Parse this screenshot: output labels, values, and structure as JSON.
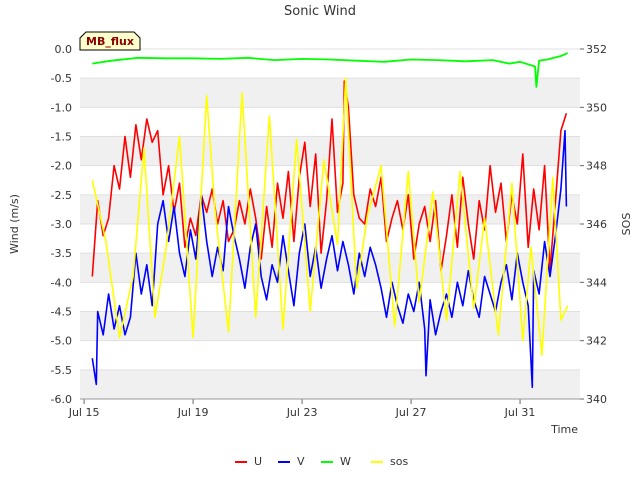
{
  "chart_data": {
    "type": "line",
    "title": "Sonic Wind",
    "badge": "MB_flux",
    "xlabel": "Time",
    "ylabel": "Wind (m/s)",
    "y2label": "SOS",
    "x_range_days": [
      14.85,
      33.2
    ],
    "ylim": [
      -6.0,
      0.0
    ],
    "y2lim": [
      340,
      352
    ],
    "x_ticks": [
      {
        "day": 15,
        "label": "Jul 15"
      },
      {
        "day": 19,
        "label": "Jul 19"
      },
      {
        "day": 23,
        "label": "Jul 23"
      },
      {
        "day": 27,
        "label": "Jul 27"
      },
      {
        "day": 31,
        "label": "Jul 31"
      }
    ],
    "y_ticks": [
      "0.0",
      "-0.5",
      "-1.0",
      "-1.5",
      "-2.0",
      "-2.5",
      "-3.0",
      "-3.5",
      "-4.0",
      "-4.5",
      "-5.0",
      "-5.5",
      "-6.0"
    ],
    "y2_ticks": [
      "352",
      "350",
      "348",
      "346",
      "344",
      "342",
      "340"
    ],
    "series": [
      {
        "name": "U",
        "color": "#ff0000",
        "axis": "left",
        "x": [
          15.3,
          15.5,
          15.7,
          15.9,
          16.1,
          16.3,
          16.5,
          16.7,
          16.9,
          17.1,
          17.3,
          17.5,
          17.7,
          17.9,
          18.1,
          18.3,
          18.5,
          18.7,
          18.9,
          19.1,
          19.3,
          19.5,
          19.7,
          19.9,
          20.1,
          20.3,
          20.5,
          20.7,
          20.9,
          21.1,
          21.3,
          21.5,
          21.7,
          21.9,
          22.1,
          22.3,
          22.5,
          22.7,
          22.9,
          23.1,
          23.3,
          23.5,
          23.7,
          23.9,
          24.1,
          24.3,
          24.5,
          24.7,
          24.9,
          25.1,
          25.3,
          25.5,
          25.7,
          25.9,
          26.1,
          26.3,
          26.5,
          26.7,
          26.9,
          27.1,
          27.3,
          27.5,
          27.7,
          27.9,
          28.1,
          28.3,
          28.5,
          28.7,
          28.9,
          29.1,
          29.3,
          29.5,
          29.7,
          29.9,
          30.1,
          30.3,
          30.5,
          30.7,
          30.9,
          31.1,
          31.3,
          31.5,
          31.7,
          31.9,
          32.1,
          32.3,
          32.5,
          32.7
        ],
        "y": [
          -3.9,
          -2.6,
          -3.2,
          -2.9,
          -2.0,
          -2.4,
          -1.5,
          -2.2,
          -1.3,
          -1.9,
          -1.2,
          -1.6,
          -1.4,
          -2.5,
          -2.0,
          -2.8,
          -2.3,
          -3.4,
          -2.9,
          -3.2,
          -2.5,
          -2.8,
          -2.4,
          -3.0,
          -2.6,
          -3.3,
          -3.1,
          -2.6,
          -3.0,
          -2.4,
          -2.9,
          -3.6,
          -2.7,
          -3.4,
          -2.3,
          -2.9,
          -2.1,
          -3.3,
          -2.2,
          -1.6,
          -2.7,
          -1.8,
          -3.5,
          -2.6,
          -1.2,
          -2.8,
          -2.3,
          -1.0,
          -2.5,
          -2.9,
          -3.0,
          -2.4,
          -2.7,
          -2.2,
          -3.3,
          -2.9,
          -2.6,
          -3.1,
          -2.5,
          -3.6,
          -3.0,
          -2.7,
          -3.3,
          -2.6,
          -3.8,
          -3.2,
          -2.5,
          -3.4,
          -2.2,
          -3.0,
          -3.6,
          -2.6,
          -3.1,
          -2.0,
          -2.8,
          -2.3,
          -3.3,
          -2.5,
          -3.0,
          -1.8,
          -3.4,
          -2.4,
          -3.1,
          -2.0,
          -3.8,
          -2.6,
          -1.4,
          -1.1
        ],
        "extrema": [
          {
            "day": 24.55,
            "value": -0.55
          }
        ]
      },
      {
        "name": "V",
        "color": "#0000ff",
        "axis": "left",
        "x": [
          15.3,
          15.5,
          15.7,
          15.9,
          16.1,
          16.3,
          16.5,
          16.7,
          16.9,
          17.1,
          17.3,
          17.5,
          17.7,
          17.9,
          18.1,
          18.3,
          18.5,
          18.7,
          18.9,
          19.1,
          19.3,
          19.5,
          19.7,
          19.9,
          20.1,
          20.3,
          20.5,
          20.7,
          20.9,
          21.1,
          21.3,
          21.5,
          21.7,
          21.9,
          22.1,
          22.3,
          22.5,
          22.7,
          22.9,
          23.1,
          23.3,
          23.5,
          23.7,
          23.9,
          24.1,
          24.3,
          24.5,
          24.7,
          24.9,
          25.1,
          25.3,
          25.5,
          25.7,
          25.9,
          26.1,
          26.3,
          26.5,
          26.7,
          26.9,
          27.1,
          27.3,
          27.5,
          27.7,
          27.9,
          28.1,
          28.3,
          28.5,
          28.7,
          28.9,
          29.1,
          29.3,
          29.5,
          29.7,
          29.9,
          30.1,
          30.3,
          30.5,
          30.7,
          30.9,
          31.1,
          31.3,
          31.5,
          31.7,
          31.9,
          32.1,
          32.3,
          32.5,
          32.7
        ],
        "y": [
          -5.3,
          -4.5,
          -4.9,
          -4.2,
          -4.8,
          -4.4,
          -4.9,
          -4.6,
          -3.5,
          -4.2,
          -3.7,
          -4.4,
          -3.0,
          -2.6,
          -3.3,
          -2.7,
          -3.5,
          -3.9,
          -3.1,
          -3.6,
          -2.5,
          -3.3,
          -3.9,
          -3.4,
          -3.8,
          -2.7,
          -3.2,
          -3.6,
          -4.1,
          -3.4,
          -3.0,
          -3.9,
          -4.3,
          -3.7,
          -4.0,
          -3.2,
          -3.8,
          -4.4,
          -3.5,
          -3.0,
          -3.9,
          -3.4,
          -4.1,
          -3.6,
          -3.2,
          -3.8,
          -3.3,
          -3.7,
          -4.2,
          -3.5,
          -3.9,
          -3.4,
          -3.7,
          -4.1,
          -4.6,
          -4.0,
          -4.4,
          -4.7,
          -4.2,
          -4.5,
          -4.0,
          -4.8,
          -4.3,
          -4.9,
          -4.5,
          -4.2,
          -4.6,
          -4.0,
          -4.4,
          -3.8,
          -4.3,
          -4.6,
          -3.9,
          -4.2,
          -4.5,
          -4.0,
          -3.7,
          -4.3,
          -3.5,
          -4.0,
          -4.4,
          -3.8,
          -4.2,
          -3.3,
          -3.9,
          -3.2,
          -2.4,
          -2.7
        ],
        "extrema": [
          {
            "day": 15.45,
            "value": -5.75
          },
          {
            "day": 27.55,
            "value": -5.6
          },
          {
            "day": 31.45,
            "value": -5.8
          },
          {
            "day": 32.65,
            "value": -1.4
          }
        ]
      },
      {
        "name": "W",
        "color": "#00ff00",
        "axis": "left",
        "x": [
          15.3,
          16.0,
          17.0,
          18.0,
          19.0,
          20.0,
          21.0,
          22.0,
          23.0,
          24.0,
          25.0,
          26.0,
          27.0,
          28.0,
          29.0,
          30.0,
          30.6,
          31.0,
          31.55,
          31.6,
          31.7,
          32.0,
          32.5,
          32.75
        ],
        "y": [
          -0.25,
          -0.2,
          -0.15,
          -0.16,
          -0.16,
          -0.17,
          -0.15,
          -0.19,
          -0.17,
          -0.18,
          -0.2,
          -0.22,
          -0.18,
          -0.19,
          -0.21,
          -0.19,
          -0.25,
          -0.22,
          -0.3,
          -0.65,
          -0.2,
          -0.18,
          -0.12,
          -0.07
        ]
      },
      {
        "name": "sos",
        "color": "#ffff00",
        "axis": "right",
        "x": [
          15.3,
          15.8,
          16.3,
          16.8,
          17.2,
          17.6,
          18.0,
          18.5,
          19.0,
          19.5,
          19.8,
          20.3,
          20.8,
          21.3,
          21.8,
          22.3,
          22.8,
          23.3,
          23.8,
          24.3,
          24.6,
          25.0,
          25.4,
          25.9,
          26.4,
          26.9,
          27.3,
          27.8,
          28.3,
          28.8,
          29.3,
          29.7,
          30.2,
          30.7,
          31.1,
          31.4,
          31.8,
          32.2,
          32.5,
          32.75
        ],
        "y": [
          347.5,
          345.4,
          342.1,
          344.2,
          348.6,
          342.8,
          345.1,
          349.0,
          342.1,
          350.4,
          346.5,
          342.3,
          350.5,
          342.8,
          349.7,
          342.4,
          348.9,
          343.0,
          348.2,
          345.3,
          351.0,
          343.8,
          346.3,
          348.0,
          342.5,
          347.8,
          343.3,
          347.1,
          342.7,
          347.8,
          343.1,
          346.2,
          342.2,
          347.4,
          342.0,
          345.2,
          341.5,
          347.6,
          342.7,
          343.2
        ]
      }
    ]
  }
}
